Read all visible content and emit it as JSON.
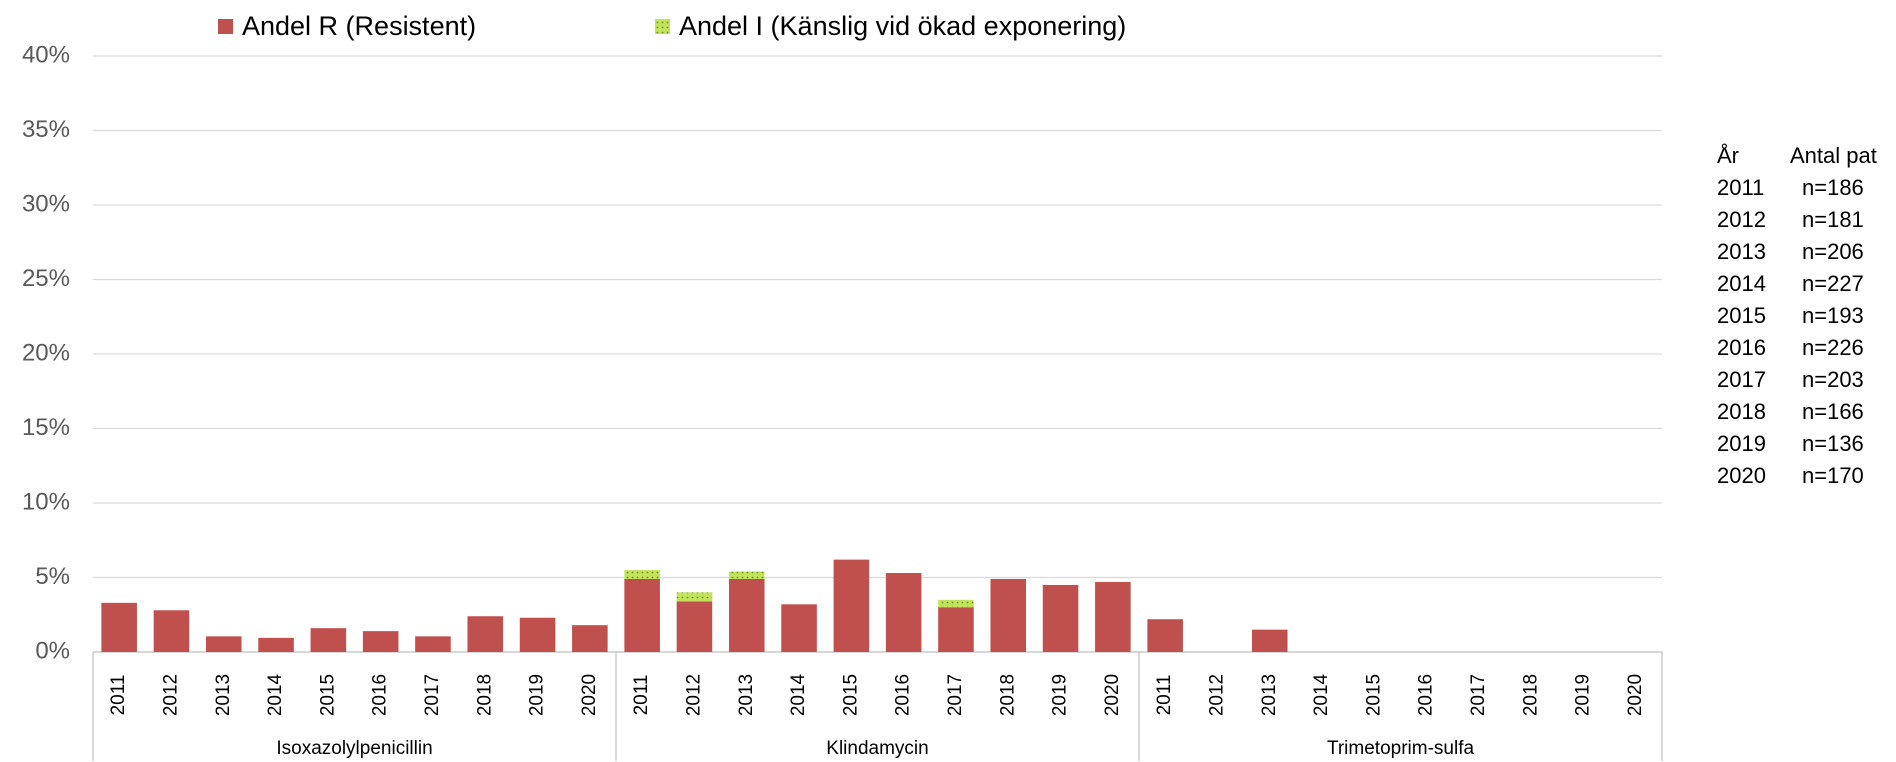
{
  "chart_data": {
    "type": "stacked_bar",
    "groups": [
      "Isoxazolylpenicillin",
      "Klindamycin",
      "Trimetoprim-sulfa"
    ],
    "categories": [
      "2011",
      "2012",
      "2013",
      "2014",
      "2015",
      "2016",
      "2017",
      "2018",
      "2019",
      "2020",
      "2011",
      "2012",
      "2013",
      "2014",
      "2015",
      "2016",
      "2017",
      "2018",
      "2019",
      "2020",
      "2011",
      "2012",
      "2013",
      "2014",
      "2015",
      "2016",
      "2017",
      "2018",
      "2019",
      "2020"
    ],
    "series": [
      {
        "name": "Andel R (Resistent)",
        "color": "#c0504d",
        "values": [
          3.3,
          2.8,
          1.05,
          0.95,
          1.6,
          1.4,
          1.05,
          2.4,
          2.3,
          1.8,
          4.9,
          3.4,
          4.9,
          3.2,
          6.2,
          5.3,
          3.0,
          4.9,
          4.5,
          4.7,
          2.2,
          0,
          1.5,
          0,
          0,
          0,
          0,
          0,
          0,
          0
        ]
      },
      {
        "name": "Andel I (Känslig vid ökad exponering)",
        "color": "#c4e35c",
        "values": [
          0,
          0,
          0,
          0,
          0,
          0,
          0,
          0,
          0,
          0,
          0.6,
          0.6,
          0.5,
          0,
          0,
          0,
          0.5,
          0,
          0,
          0,
          0,
          0,
          0,
          0,
          0,
          0,
          0,
          0,
          0,
          0
        ]
      }
    ],
    "ylim": [
      0,
      40
    ],
    "yticks": [
      {
        "value": 0,
        "label": "0%"
      },
      {
        "value": 5,
        "label": "5%"
      },
      {
        "value": 10,
        "label": "10%"
      },
      {
        "value": 15,
        "label": "15%"
      },
      {
        "value": 20,
        "label": "20%"
      },
      {
        "value": 25,
        "label": "25%"
      },
      {
        "value": 30,
        "label": "30%"
      },
      {
        "value": 35,
        "label": "35%"
      },
      {
        "value": 40,
        "label": "40%"
      }
    ],
    "grid": true
  },
  "side_table": {
    "header": [
      "År",
      "Antal pat"
    ],
    "rows": [
      [
        "2011",
        "n=186"
      ],
      [
        "2012",
        "n=181"
      ],
      [
        "2013",
        "n=206"
      ],
      [
        "2014",
        "n=227"
      ],
      [
        "2015",
        "n=193"
      ],
      [
        "2016",
        "n=226"
      ],
      [
        "2017",
        "n=203"
      ],
      [
        "2018",
        "n=166"
      ],
      [
        "2019",
        "n=136"
      ],
      [
        "2020",
        "n=170"
      ]
    ]
  }
}
